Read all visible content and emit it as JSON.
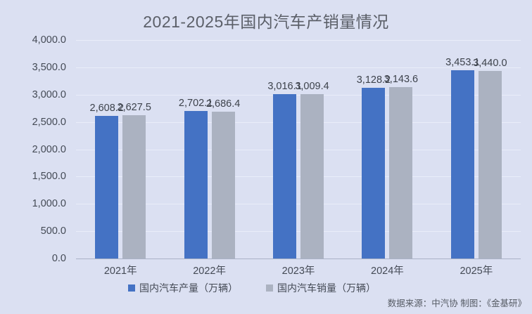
{
  "title": "2021-2025年国内汽车产销量情况",
  "footer": {
    "source": "数据来源：中汽协  制图：《金基研》"
  },
  "colors": {
    "background": "#dbe0f2",
    "production_bar": "#4472c4",
    "sales_bar": "#abb2c1",
    "gridline": "#e9edf9",
    "axis_line": "#a9b1c6",
    "text": "#444a55"
  },
  "chart_data": {
    "type": "bar",
    "title": "2021-2025年国内汽车产销量情况",
    "categories": [
      "2021年",
      "2022年",
      "2023年",
      "2024年",
      "2025年"
    ],
    "series": [
      {
        "name": "国内汽车产量（万辆）",
        "values": [
          2608.2,
          2702.1,
          3016.1,
          3128.2,
          3453.1
        ],
        "labels": [
          "2,608.2",
          "2,702.1",
          "3,016.1",
          "3,128.2",
          "3,453.1"
        ],
        "color": "#4472c4"
      },
      {
        "name": "国内汽车销量（万辆）",
        "values": [
          2627.5,
          2686.4,
          3009.4,
          3143.6,
          3440.0
        ],
        "labels": [
          "2,627.5",
          "2,686.4",
          "3,009.4",
          "3,143.6",
          "3,440.0"
        ],
        "color": "#abb2c1"
      }
    ],
    "xlabel": "",
    "ylabel": "",
    "ylim": [
      0,
      4000
    ],
    "ytick_step": 500,
    "yticks": [
      "0.0",
      "500.0",
      "1,000.0",
      "1,500.0",
      "2,000.0",
      "2,500.0",
      "3,000.0",
      "3,500.0",
      "4,000.0"
    ],
    "grid": true,
    "legend_position": "bottom"
  }
}
